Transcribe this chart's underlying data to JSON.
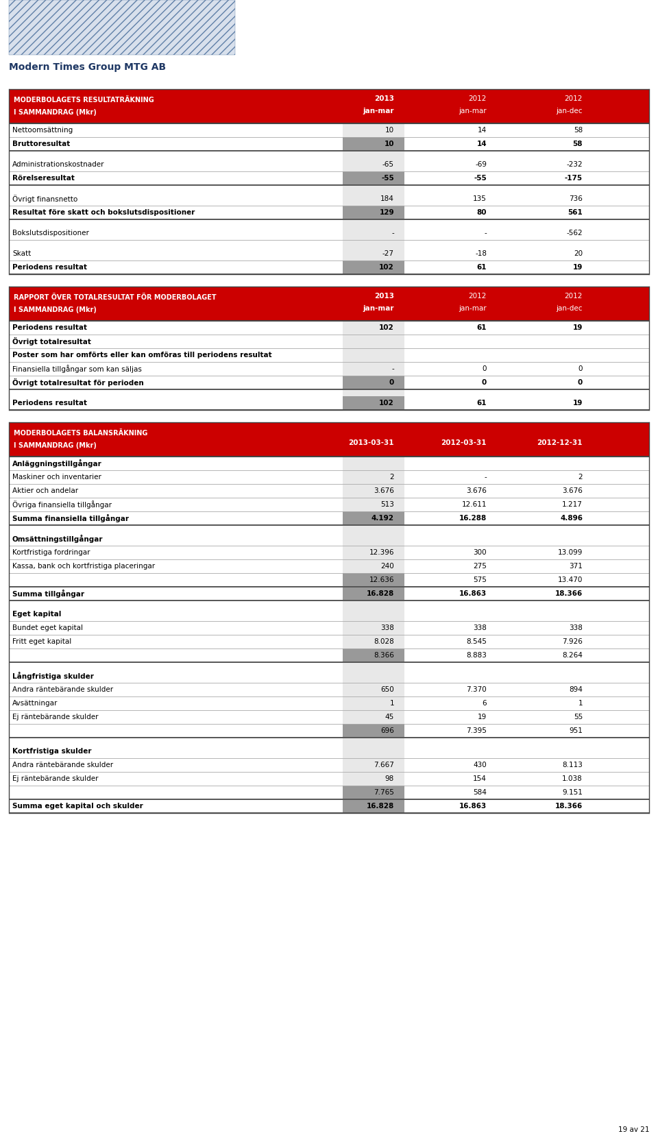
{
  "title_company": "Modern Times Group MTG AB",
  "header_color": "#CC0000",
  "mid_gray": "#999999",
  "col_shade": "#E8E8E8",
  "section1_header1": "MODERBOLAGETS RESULTATRÄKNING",
  "section1_header2": "I SAMMANDRAG (Mkr)",
  "section1_col1": "2013",
  "section1_col2": "2012",
  "section1_col3": "2012",
  "section1_sub1": "jan-mar",
  "section1_sub2": "jan-mar",
  "section1_sub3": "jan-dec",
  "section1_rows": [
    {
      "label": "Nettoomsättning",
      "v1": "10",
      "v2": "14",
      "v3": "58",
      "bold": false,
      "highlight": false,
      "spacer": false
    },
    {
      "label": "Bruttoresultat",
      "v1": "10",
      "v2": "14",
      "v3": "58",
      "bold": true,
      "highlight": true,
      "spacer": false
    },
    {
      "label": "",
      "v1": "",
      "v2": "",
      "v3": "",
      "bold": false,
      "highlight": false,
      "spacer": true
    },
    {
      "label": "Administrationskostnader",
      "v1": "-65",
      "v2": "-69",
      "v3": "-232",
      "bold": false,
      "highlight": false,
      "spacer": false
    },
    {
      "label": "Rörelseresultat",
      "v1": "-55",
      "v2": "-55",
      "v3": "-175",
      "bold": true,
      "highlight": true,
      "spacer": false
    },
    {
      "label": "",
      "v1": "",
      "v2": "",
      "v3": "",
      "bold": false,
      "highlight": false,
      "spacer": true
    },
    {
      "label": "Övrigt finansnetto",
      "v1": "184",
      "v2": "135",
      "v3": "736",
      "bold": false,
      "highlight": false,
      "spacer": false
    },
    {
      "label": "Resultat före skatt och bokslutsdispositioner",
      "v1": "129",
      "v2": "80",
      "v3": "561",
      "bold": true,
      "highlight": true,
      "spacer": false
    },
    {
      "label": "",
      "v1": "",
      "v2": "",
      "v3": "",
      "bold": false,
      "highlight": false,
      "spacer": true
    },
    {
      "label": "Bokslutsdispositioner",
      "v1": "-",
      "v2": "-",
      "v3": "-562",
      "bold": false,
      "highlight": false,
      "spacer": false
    },
    {
      "label": "",
      "v1": "",
      "v2": "",
      "v3": "",
      "bold": false,
      "highlight": false,
      "spacer": true
    },
    {
      "label": "Skatt",
      "v1": "-27",
      "v2": "-18",
      "v3": "20",
      "bold": false,
      "highlight": false,
      "spacer": false
    },
    {
      "label": "Periodens resultat",
      "v1": "102",
      "v2": "61",
      "v3": "19",
      "bold": true,
      "highlight": true,
      "spacer": false
    }
  ],
  "section2_header1": "RAPPORT ÖVER TOTALRESULTAT FÖR MODERBOLAGET",
  "section2_header2": "I SAMMANDRAG (Mkr)",
  "section2_col1": "2013",
  "section2_col2": "2012",
  "section2_col3": "2012",
  "section2_sub1": "jan-mar",
  "section2_sub2": "jan-mar",
  "section2_sub3": "jan-dec",
  "section2_rows": [
    {
      "label": "Periodens resultat",
      "v1": "102",
      "v2": "61",
      "v3": "19",
      "bold": true,
      "highlight": false,
      "spacer": false
    },
    {
      "label": "Övrigt totalresultat",
      "v1": "",
      "v2": "",
      "v3": "",
      "bold": true,
      "highlight": false,
      "spacer": false
    },
    {
      "label": "Poster som har omförts eller kan omföras till periodens resultat",
      "v1": "",
      "v2": "",
      "v3": "",
      "bold": true,
      "highlight": false,
      "spacer": false
    },
    {
      "label": "Finansiella tillgångar som kan säljas",
      "v1": "-",
      "v2": "0",
      "v3": "0",
      "bold": false,
      "highlight": false,
      "spacer": false
    },
    {
      "label": "Övrigt totalresultat för perioden",
      "v1": "0",
      "v2": "0",
      "v3": "0",
      "bold": true,
      "highlight": true,
      "spacer": false
    },
    {
      "label": "",
      "v1": "",
      "v2": "",
      "v3": "",
      "bold": false,
      "highlight": false,
      "spacer": true
    },
    {
      "label": "Periodens resultat",
      "v1": "102",
      "v2": "61",
      "v3": "19",
      "bold": true,
      "highlight": true,
      "spacer": false
    }
  ],
  "section3_header1": "MODERBOLAGETS BALANSRÄKNING",
  "section3_header2": "I SAMMANDRAG (Mkr)",
  "section3_col1": "2013-03-31",
  "section3_col2": "2012-03-31",
  "section3_col3": "2012-12-31",
  "section3_rows": [
    {
      "label": "Anläggningstillgångar",
      "v1": "",
      "v2": "",
      "v3": "",
      "bold": true,
      "highlight": false,
      "spacer": false
    },
    {
      "label": "Maskiner och inventarier",
      "v1": "2",
      "v2": "-",
      "v3": "2",
      "bold": false,
      "highlight": false,
      "spacer": false
    },
    {
      "label": "Aktier och andelar",
      "v1": "3.676",
      "v2": "3.676",
      "v3": "3.676",
      "bold": false,
      "highlight": false,
      "spacer": false
    },
    {
      "label": "Övriga finansiella tillgångar",
      "v1": "513",
      "v2": "12.611",
      "v3": "1.217",
      "bold": false,
      "highlight": false,
      "spacer": false
    },
    {
      "label": "Summa finansiella tillgångar",
      "v1": "4.192",
      "v2": "16.288",
      "v3": "4.896",
      "bold": true,
      "highlight": true,
      "spacer": false
    },
    {
      "label": "",
      "v1": "",
      "v2": "",
      "v3": "",
      "bold": false,
      "highlight": false,
      "spacer": true
    },
    {
      "label": "Omsättningstillgångar",
      "v1": "",
      "v2": "",
      "v3": "",
      "bold": true,
      "highlight": false,
      "spacer": false
    },
    {
      "label": "Kortfristiga fordringar",
      "v1": "12.396",
      "v2": "300",
      "v3": "13.099",
      "bold": false,
      "highlight": false,
      "spacer": false
    },
    {
      "label": "Kassa, bank och kortfristiga placeringar",
      "v1": "240",
      "v2": "275",
      "v3": "371",
      "bold": false,
      "highlight": false,
      "spacer": false
    },
    {
      "label": "",
      "v1": "12.636",
      "v2": "575",
      "v3": "13.470",
      "bold": false,
      "highlight": true,
      "spacer": false
    },
    {
      "label": "Summa tillgångar",
      "v1": "16.828",
      "v2": "16.863",
      "v3": "18.366",
      "bold": true,
      "highlight": true,
      "spacer": false
    },
    {
      "label": "",
      "v1": "",
      "v2": "",
      "v3": "",
      "bold": false,
      "highlight": false,
      "spacer": true
    },
    {
      "label": "Eget kapital",
      "v1": "",
      "v2": "",
      "v3": "",
      "bold": true,
      "highlight": false,
      "spacer": false
    },
    {
      "label": "Bundet eget kapital",
      "v1": "338",
      "v2": "338",
      "v3": "338",
      "bold": false,
      "highlight": false,
      "spacer": false
    },
    {
      "label": "Fritt eget kapital",
      "v1": "8.028",
      "v2": "8.545",
      "v3": "7.926",
      "bold": false,
      "highlight": false,
      "spacer": false
    },
    {
      "label": "",
      "v1": "8.366",
      "v2": "8.883",
      "v3": "8.264",
      "bold": false,
      "highlight": true,
      "spacer": false
    },
    {
      "label": "",
      "v1": "",
      "v2": "",
      "v3": "",
      "bold": false,
      "highlight": false,
      "spacer": true
    },
    {
      "label": "Långfristiga skulder",
      "v1": "",
      "v2": "",
      "v3": "",
      "bold": true,
      "highlight": false,
      "spacer": false
    },
    {
      "label": "Andra räntebärande skulder",
      "v1": "650",
      "v2": "7.370",
      "v3": "894",
      "bold": false,
      "highlight": false,
      "spacer": false
    },
    {
      "label": "Avsättningar",
      "v1": "1",
      "v2": "6",
      "v3": "1",
      "bold": false,
      "highlight": false,
      "spacer": false
    },
    {
      "label": "Ej räntebärande skulder",
      "v1": "45",
      "v2": "19",
      "v3": "55",
      "bold": false,
      "highlight": false,
      "spacer": false
    },
    {
      "label": "",
      "v1": "696",
      "v2": "7.395",
      "v3": "951",
      "bold": false,
      "highlight": true,
      "spacer": false
    },
    {
      "label": "",
      "v1": "",
      "v2": "",
      "v3": "",
      "bold": false,
      "highlight": false,
      "spacer": true
    },
    {
      "label": "Kortfristiga skulder",
      "v1": "",
      "v2": "",
      "v3": "",
      "bold": true,
      "highlight": false,
      "spacer": false
    },
    {
      "label": "Andra räntebärande skulder",
      "v1": "7.667",
      "v2": "430",
      "v3": "8.113",
      "bold": false,
      "highlight": false,
      "spacer": false
    },
    {
      "label": "Ej räntebärande skulder",
      "v1": "98",
      "v2": "154",
      "v3": "1.038",
      "bold": false,
      "highlight": false,
      "spacer": false
    },
    {
      "label": "",
      "v1": "7.765",
      "v2": "584",
      "v3": "9.151",
      "bold": false,
      "highlight": true,
      "spacer": false
    },
    {
      "label": "Summa eget kapital och skulder",
      "v1": "16.828",
      "v2": "16.863",
      "v3": "18.366",
      "bold": true,
      "highlight": true,
      "spacer": false
    }
  ],
  "footer": "19 av 21"
}
